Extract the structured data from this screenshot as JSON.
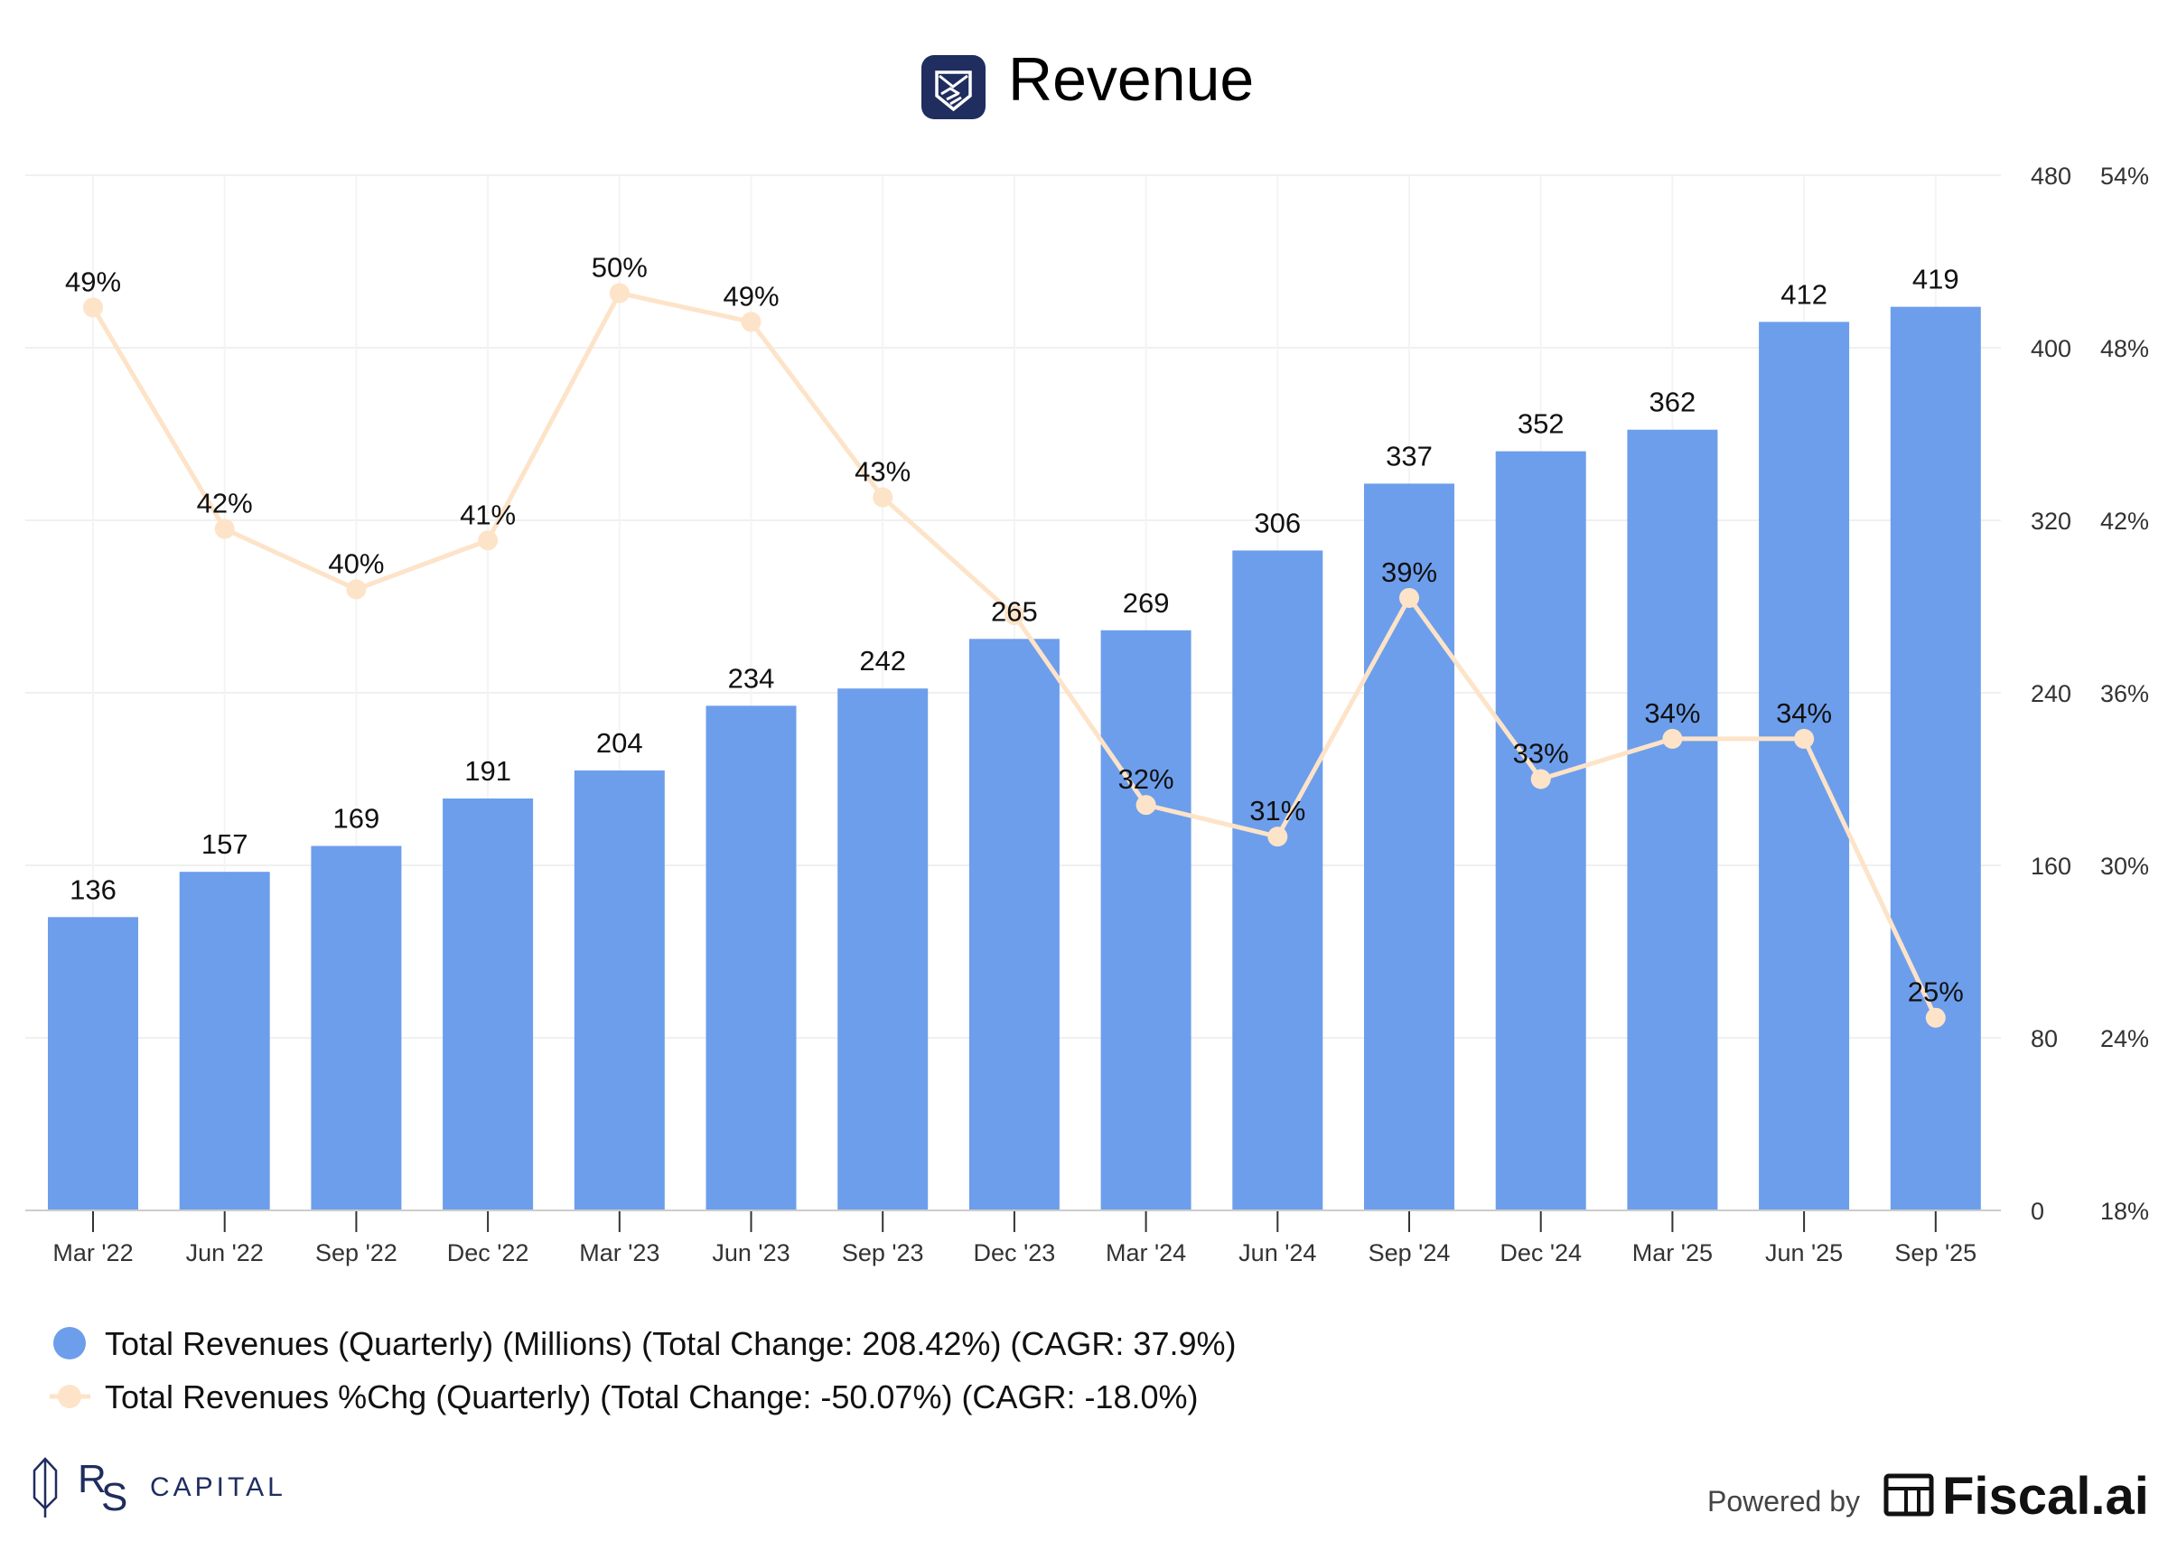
{
  "header": {
    "title": "Revenue",
    "logo_icon": "shield-handshake-icon"
  },
  "chart_data": {
    "type": "bar+line",
    "title": "Revenue",
    "categories": [
      "Mar '22",
      "Jun '22",
      "Sep '22",
      "Dec '22",
      "Mar '23",
      "Jun '23",
      "Sep '23",
      "Dec '23",
      "Mar '24",
      "Jun '24",
      "Sep '24",
      "Dec '24",
      "Mar '25",
      "Jun '25",
      "Sep '25"
    ],
    "series": [
      {
        "name": "Total Revenues (Quarterly) (Millions) (Total Change: 208.42%) (CAGR: 37.9%)",
        "type": "bar",
        "axis": "left",
        "color": "#6d9eeb",
        "values": [
          136,
          157,
          169,
          191,
          204,
          234,
          242,
          265,
          269,
          306,
          337,
          352,
          362,
          412,
          419
        ],
        "labels": [
          "136",
          "157",
          "169",
          "191",
          "204",
          "234",
          "242",
          "265",
          "269",
          "306",
          "337",
          "352",
          "362",
          "412",
          "419"
        ]
      },
      {
        "name": "Total Revenues %Chg (Quarterly) (Total Change: -50.07%) (CAGR: -18.0%)",
        "type": "line",
        "axis": "right",
        "color": "#fde3c8",
        "values": [
          49.4,
          41.7,
          39.6,
          41.3,
          49.9,
          48.9,
          42.8,
          38.7,
          32.1,
          31.0,
          39.3,
          33.0,
          34.4,
          34.4,
          24.7
        ],
        "labels": [
          "49%",
          "42%",
          "40%",
          "41%",
          "50%",
          "49%",
          "43%",
          null,
          "32%",
          "31%",
          "39%",
          "33%",
          "34%",
          "34%",
          "25%"
        ]
      }
    ],
    "y_left": {
      "range": [
        0,
        480
      ],
      "ticks": [
        "0",
        "80",
        "160",
        "240",
        "320",
        "400",
        "480"
      ]
    },
    "y_right": {
      "range": [
        18,
        54
      ],
      "ticks": [
        "18%",
        "24%",
        "30%",
        "36%",
        "42%",
        "48%",
        "54%"
      ]
    },
    "grid": true,
    "legend_placement": "bottom-left"
  },
  "footer": {
    "left_brand": "RS CAPITAL",
    "left_monogram": "RS",
    "powered_by": "Powered by",
    "right_brand": "Fiscal.ai"
  }
}
